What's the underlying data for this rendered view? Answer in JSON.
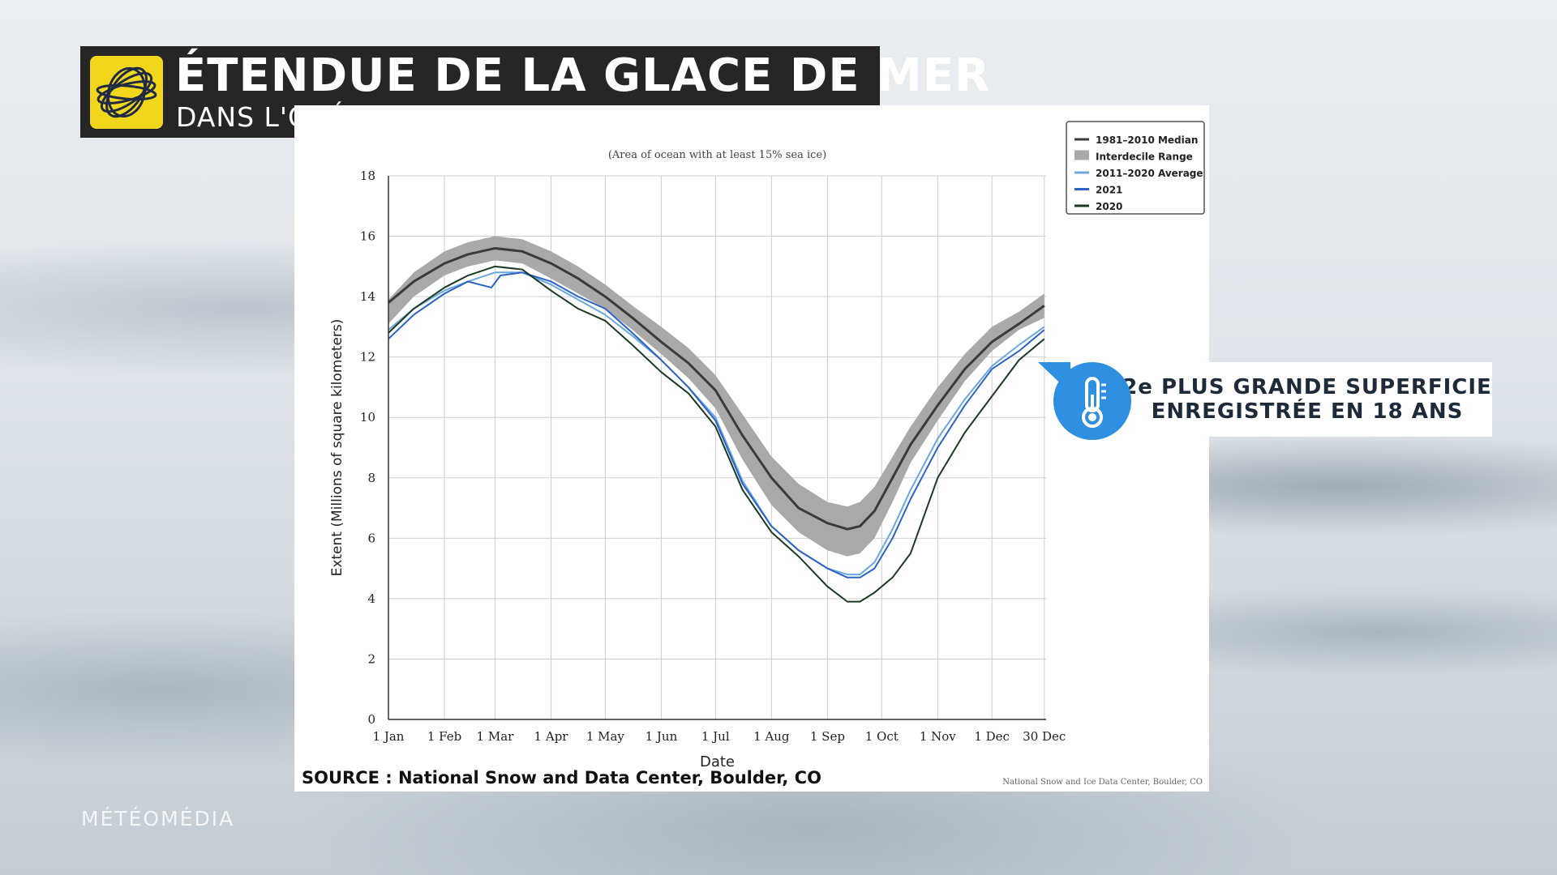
{
  "header": {
    "title": "ÉTENDUE DE LA GLACE DE MER",
    "subtitle": "DANS L'OCÉAN ARCTIQUE",
    "logo_icon": "weather-network-swirl-icon",
    "logo_color": "#f2d61b"
  },
  "callout": {
    "line1": "2e PLUS GRANDE SUPERFICIE",
    "line2": "ENREGISTRÉE EN 18 ANS",
    "icon": "thermometer-icon",
    "icon_color": "#2f8fe0"
  },
  "source": "SOURCE : National Snow and Data Center, Boulder, CO",
  "credit": "National Snow and Ice Data Center, Boulder, CO",
  "watermark": "MÉTÉOMÉDIA",
  "chart_data": {
    "type": "line",
    "subtitle": "(Area of ocean with at least 15% sea ice)",
    "xlabel": "Date",
    "ylabel": "Extent (Millions of square kilometers)",
    "ylim": [
      0,
      18
    ],
    "yticks": [
      0,
      2,
      4,
      6,
      8,
      10,
      12,
      14,
      16,
      18
    ],
    "xlim": [
      1,
      365
    ],
    "xticks": [
      {
        "label": "1 Jan",
        "day": 1
      },
      {
        "label": "1 Feb",
        "day": 32
      },
      {
        "label": "1 Mar",
        "day": 60
      },
      {
        "label": "1 Apr",
        "day": 91
      },
      {
        "label": "1 May",
        "day": 121
      },
      {
        "label": "1 Jun",
        "day": 152
      },
      {
        "label": "1 Jul",
        "day": 182
      },
      {
        "label": "1 Aug",
        "day": 213
      },
      {
        "label": "1 Sep",
        "day": 244
      },
      {
        "label": "1 Oct",
        "day": 274
      },
      {
        "label": "1 Nov",
        "day": 305
      },
      {
        "label": "1 Dec",
        "day": 335
      },
      {
        "label": "30 Dec",
        "day": 364
      }
    ],
    "grid": true,
    "legend_position": "top-right",
    "range": {
      "name": "Interdecile Range",
      "color": "#a9a9a9",
      "x": [
        1,
        15,
        32,
        45,
        60,
        75,
        91,
        106,
        121,
        136,
        152,
        167,
        182,
        197,
        213,
        228,
        244,
        255,
        262,
        270,
        280,
        290,
        305,
        320,
        335,
        350,
        364
      ],
      "upper": [
        13.9,
        14.8,
        15.5,
        15.8,
        16.0,
        15.9,
        15.5,
        15.0,
        14.4,
        13.7,
        13.0,
        12.3,
        11.4,
        10.1,
        8.7,
        7.8,
        7.2,
        7.05,
        7.2,
        7.7,
        8.7,
        9.7,
        11.0,
        12.1,
        13.0,
        13.5,
        14.1
      ],
      "lower": [
        13.1,
        14.0,
        14.7,
        15.0,
        15.2,
        15.1,
        14.6,
        14.1,
        13.6,
        12.9,
        12.1,
        11.3,
        10.3,
        8.6,
        7.1,
        6.2,
        5.6,
        5.4,
        5.5,
        6.0,
        7.2,
        8.5,
        9.9,
        11.2,
        12.2,
        12.9,
        13.3
      ]
    },
    "series": [
      {
        "name": "1981–2010 Median",
        "color": "#3b3b3b",
        "width": 3,
        "x": [
          1,
          15,
          32,
          45,
          60,
          75,
          91,
          106,
          121,
          136,
          152,
          167,
          182,
          197,
          213,
          228,
          244,
          255,
          262,
          270,
          280,
          290,
          305,
          320,
          335,
          350,
          364
        ],
        "values": [
          13.8,
          14.5,
          15.1,
          15.4,
          15.6,
          15.5,
          15.1,
          14.6,
          14.0,
          13.3,
          12.5,
          11.8,
          10.9,
          9.4,
          8.0,
          7.0,
          6.5,
          6.3,
          6.4,
          6.9,
          8.0,
          9.1,
          10.4,
          11.6,
          12.5,
          13.1,
          13.7
        ]
      },
      {
        "name": "Interdecile Range",
        "color": "#a9a9a9",
        "legend_only": true
      },
      {
        "name": "2011–2020 Average",
        "color": "#6aa8e0",
        "width": 2,
        "x": [
          1,
          15,
          32,
          45,
          60,
          75,
          91,
          106,
          121,
          136,
          152,
          167,
          182,
          197,
          213,
          228,
          244,
          255,
          262,
          270,
          280,
          290,
          305,
          320,
          335,
          350,
          364
        ],
        "values": [
          12.9,
          13.6,
          14.2,
          14.5,
          14.8,
          14.8,
          14.4,
          13.9,
          13.4,
          12.7,
          11.9,
          11.0,
          10.0,
          7.9,
          6.4,
          5.6,
          5.0,
          4.8,
          4.8,
          5.2,
          6.3,
          7.6,
          9.3,
          10.6,
          11.7,
          12.4,
          13.0
        ]
      },
      {
        "name": "2021",
        "color": "#2b63c6",
        "width": 2,
        "x": [
          1,
          15,
          32,
          45,
          58,
          63,
          75,
          91,
          106,
          121,
          136,
          152,
          167,
          182,
          197,
          213,
          228,
          244,
          255,
          262,
          270,
          280,
          290,
          305,
          320,
          335,
          350,
          364
        ],
        "values": [
          12.6,
          13.4,
          14.1,
          14.5,
          14.3,
          14.7,
          14.8,
          14.5,
          14.0,
          13.6,
          12.8,
          11.9,
          11.0,
          9.9,
          7.8,
          6.4,
          5.6,
          5.0,
          4.7,
          4.7,
          5.0,
          6.0,
          7.3,
          9.0,
          10.4,
          11.6,
          12.2,
          12.9
        ]
      },
      {
        "name": "2020",
        "color": "#1c3a22",
        "width": 2,
        "x": [
          1,
          15,
          32,
          45,
          60,
          75,
          91,
          106,
          121,
          136,
          152,
          167,
          182,
          197,
          213,
          228,
          244,
          255,
          262,
          270,
          280,
          290,
          305,
          320,
          335,
          350,
          364
        ],
        "values": [
          12.8,
          13.6,
          14.3,
          14.7,
          15.0,
          14.9,
          14.2,
          13.6,
          13.2,
          12.4,
          11.5,
          10.8,
          9.7,
          7.6,
          6.2,
          5.4,
          4.4,
          3.9,
          3.9,
          4.2,
          4.7,
          5.5,
          8.0,
          9.5,
          10.7,
          11.9,
          12.6
        ]
      }
    ]
  }
}
